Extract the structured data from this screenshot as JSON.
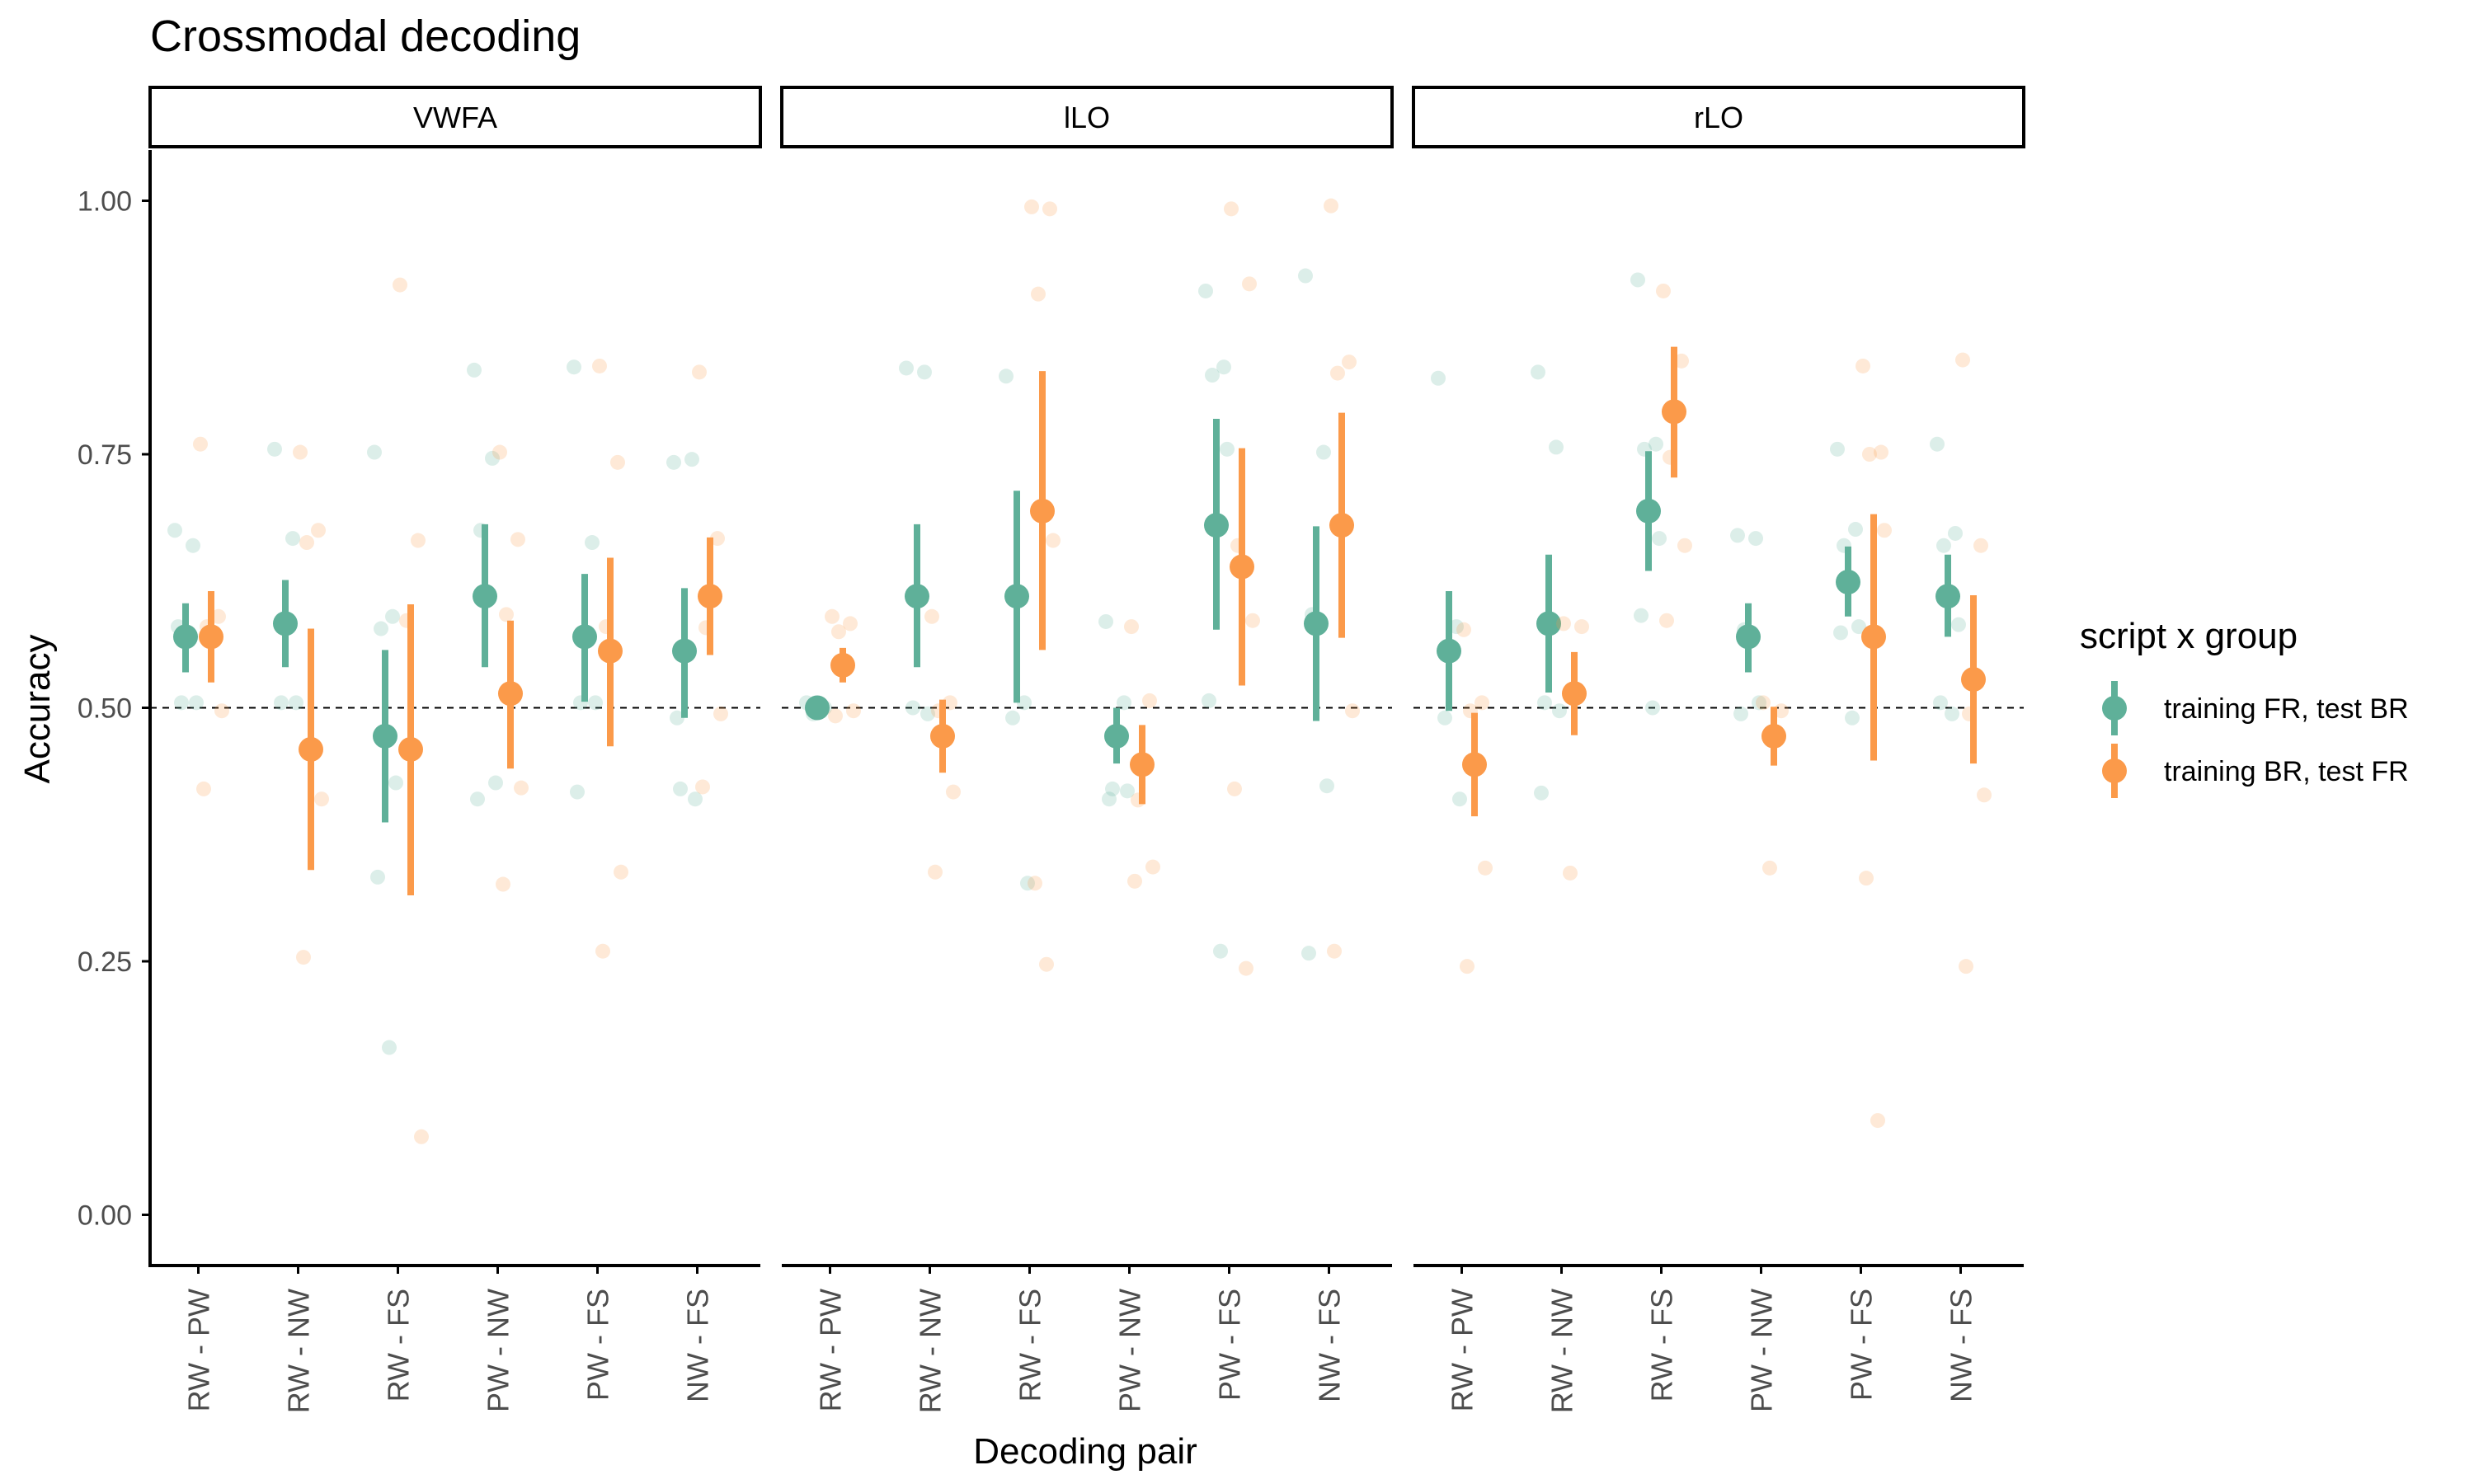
{
  "chart_data": {
    "type": "scatter",
    "title": "Crossmodal decoding",
    "xlabel": "Decoding pair",
    "ylabel": "Accuracy",
    "ylim": [
      -0.05,
      1.05
    ],
    "yticks": [
      "0.00",
      "0.25",
      "0.50",
      "0.75",
      "1.00"
    ],
    "reference_line": 0.5,
    "categories": [
      "RW - PW",
      "RW - NW",
      "RW - FS",
      "PW - NW",
      "PW - FS",
      "NW - FS"
    ],
    "legend": {
      "title": "script x group",
      "position": "right",
      "entries": [
        {
          "label": "training FR, test BR",
          "color": "#5fb099"
        },
        {
          "label": "training BR, test FR",
          "color": "#fb9a4a"
        }
      ]
    },
    "grid": false,
    "panels": [
      {
        "name": "VWFA",
        "series": [
          {
            "name": "training FR, test BR",
            "color": "#5fb099",
            "mean": [
              0.57,
              0.583,
              0.472,
              0.61,
              0.57,
              0.556
            ],
            "lower": [
              0.535,
              0.54,
              0.387,
              0.54,
              0.506,
              0.49
            ],
            "upper": [
              0.603,
              0.626,
              0.557,
              0.681,
              0.632,
              0.618
            ],
            "points": [
              [
                0.675,
                0.66,
                0.505,
                0.505,
                0.58
              ],
              [
                0.755,
                0.667,
                0.505,
                0.505
              ],
              [
                0.752,
                0.59,
                0.578,
                0.426,
                0.333,
                0.165
              ],
              [
                0.833,
                0.746,
                0.675,
                0.426,
                0.41
              ],
              [
                0.836,
                0.663,
                0.505,
                0.505,
                0.417
              ],
              [
                0.742,
                0.745,
                0.42,
                0.41,
                0.49
              ]
            ]
          },
          {
            "name": "training BR, test FR",
            "color": "#fb9a4a",
            "mean": [
              0.57,
              0.459,
              0.459,
              0.514,
              0.556,
              0.61
            ],
            "lower": [
              0.525,
              0.34,
              0.315,
              0.44,
              0.462,
              0.552
            ],
            "upper": [
              0.615,
              0.578,
              0.602,
              0.586,
              0.648,
              0.668
            ],
            "points": [
              [
                0.76,
                0.59,
                0.58,
                0.497,
                0.42
              ],
              [
                0.752,
                0.675,
                0.663,
                0.41,
                0.254
              ],
              [
                0.917,
                0.665,
                0.586,
                0.077
              ],
              [
                0.752,
                0.666,
                0.592,
                0.421,
                0.326
              ],
              [
                0.837,
                0.742,
                0.58,
                0.338,
                0.26
              ],
              [
                0.831,
                0.667,
                0.579,
                0.494,
                0.422
              ]
            ]
          }
        ]
      },
      {
        "name": "lLO",
        "series": [
          {
            "name": "training FR, test BR",
            "color": "#5fb099",
            "mean": [
              0.5,
              0.61,
              0.61,
              0.472,
              0.68,
              0.583
            ],
            "lower": [
              0.495,
              0.54,
              0.505,
              0.445,
              0.577,
              0.487
            ],
            "upper": [
              0.505,
              0.681,
              0.714,
              0.5,
              0.785,
              0.679
            ],
            "points": [
              [
                0.505,
                0.5,
                0.494
              ],
              [
                0.835,
                0.831,
                0.5,
                0.494
              ],
              [
                0.827,
                0.505,
                0.49,
                0.327
              ],
              [
                0.585,
                0.505,
                0.42,
                0.418,
                0.41
              ],
              [
                0.911,
                0.836,
                0.828,
                0.755,
                0.507,
                0.26
              ],
              [
                0.926,
                0.752,
                0.592,
                0.423,
                0.258
              ]
            ]
          },
          {
            "name": "training BR, test FR",
            "color": "#fb9a4a",
            "mean": [
              0.542,
              0.472,
              0.694,
              0.444,
              0.639,
              0.68
            ],
            "lower": [
              0.525,
              0.436,
              0.557,
              0.405,
              0.522,
              0.569
            ],
            "upper": [
              0.559,
              0.508,
              0.832,
              0.483,
              0.756,
              0.791
            ],
            "points": [
              [
                0.59,
                0.583,
                0.575,
                0.497,
                0.492
              ],
              [
                0.59,
                0.505,
                0.497,
                0.417,
                0.338
              ],
              [
                0.994,
                0.992,
                0.908,
                0.665,
                0.327,
                0.247
              ],
              [
                0.58,
                0.507,
                0.409,
                0.343,
                0.329
              ],
              [
                0.992,
                0.918,
                0.66,
                0.586,
                0.42,
                0.243
              ],
              [
                0.995,
                0.841,
                0.83,
                0.497,
                0.26
              ]
            ]
          }
        ]
      },
      {
        "name": "rLO",
        "series": [
          {
            "name": "training FR, test BR",
            "color": "#5fb099",
            "mean": [
              0.556,
              0.583,
              0.694,
              0.57,
              0.624,
              0.61
            ],
            "lower": [
              0.497,
              0.515,
              0.635,
              0.535,
              0.59,
              0.57
            ],
            "upper": [
              0.615,
              0.651,
              0.753,
              0.603,
              0.659,
              0.651
            ],
            "points": [
              [
                0.825,
                0.58,
                0.49,
                0.41
              ],
              [
                0.831,
                0.757,
                0.505,
                0.497,
                0.416
              ],
              [
                0.922,
                0.76,
                0.755,
                0.667,
                0.591,
                0.5
              ],
              [
                0.67,
                0.667,
                0.577,
                0.505,
                0.494
              ],
              [
                0.755,
                0.676,
                0.66,
                0.58,
                0.574,
                0.49
              ],
              [
                0.76,
                0.672,
                0.66,
                0.582,
                0.505,
                0.494
              ]
            ]
          },
          {
            "name": "training BR, test FR",
            "color": "#fb9a4a",
            "mean": [
              0.444,
              0.514,
              0.792,
              0.472,
              0.57,
              0.528
            ],
            "lower": [
              0.393,
              0.473,
              0.727,
              0.443,
              0.448,
              0.445
            ],
            "upper": [
              0.495,
              0.555,
              0.856,
              0.501,
              0.691,
              0.611
            ],
            "points": [
              [
                0.577,
                0.505,
                0.497,
                0.342,
                0.245
              ],
              [
                0.583,
                0.58,
                0.337
              ],
              [
                0.911,
                0.842,
                0.747,
                0.66,
                0.586
              ],
              [
                0.505,
                0.497,
                0.342
              ],
              [
                0.837,
                0.752,
                0.75,
                0.675,
                0.332,
                0.093
              ],
              [
                0.843,
                0.66,
                0.494,
                0.414,
                0.245
              ]
            ]
          }
        ]
      }
    ]
  }
}
